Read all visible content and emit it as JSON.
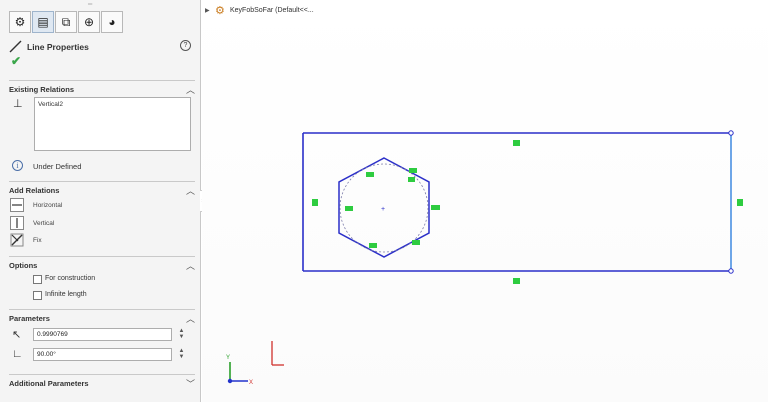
{
  "property_manager": {
    "tabs": [
      {
        "name": "feature-manager-tab",
        "glyph": "⚙"
      },
      {
        "name": "property-manager-tab",
        "glyph": "▤"
      },
      {
        "name": "configuration-manager-tab",
        "glyph": "⧉"
      },
      {
        "name": "dimxpert-tab",
        "glyph": "⊕"
      },
      {
        "name": "display-manager-tab",
        "glyph": "◕"
      }
    ],
    "title": "Line Properties",
    "help_glyph": "?",
    "ok_glyph": "✔",
    "existing_relations": {
      "label": "Existing Relations",
      "items": [
        "Vertical2"
      ]
    },
    "status": "Under Defined",
    "add_relations": {
      "label": "Add Relations",
      "items": [
        "Horizontal",
        "Vertical",
        "Fix"
      ]
    },
    "options": {
      "label": "Options",
      "items": [
        "For construction",
        "Infinite length"
      ]
    },
    "parameters": {
      "label": "Parameters",
      "length": "0.9990769",
      "angle": "90.00°"
    },
    "additional_parameters": {
      "label": "Additional Parameters"
    }
  },
  "feature_tree": {
    "label": "KeyFobSoFar (Default<<..."
  },
  "colors": {
    "sketch_line": "#2b2fc9",
    "selected_line": "#4a90e2",
    "relation_badge": "#2ecc40",
    "axis_red": "#d0312d",
    "axis_green": "#2aa02a",
    "axis_blue": "#2233cc"
  }
}
